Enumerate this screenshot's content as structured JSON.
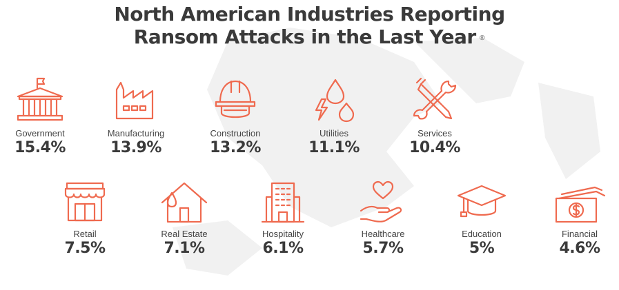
{
  "title_line1": "North American Industries Reporting",
  "title_line2": "Ransom Attacks in the Last Year",
  "title_mark": "®",
  "accent_color": "#ef6a4f",
  "chart_data": {
    "type": "table",
    "categories": [
      "Government",
      "Manufacturing",
      "Construction",
      "Utilities",
      "Services",
      "Retail",
      "Real Estate",
      "Hospitality",
      "Healthcare",
      "Education",
      "Financial"
    ],
    "values": [
      15.4,
      13.9,
      13.2,
      11.1,
      10.4,
      7.5,
      7.1,
      6.1,
      5.7,
      5,
      4.6
    ],
    "unit": "%"
  },
  "items": [
    {
      "label": "Government",
      "value": "15.4%",
      "icon": "government-building-icon"
    },
    {
      "label": "Manufacturing",
      "value": "13.9%",
      "icon": "factory-icon"
    },
    {
      "label": "Construction",
      "value": "13.2%",
      "icon": "hard-hat-icon"
    },
    {
      "label": "Utilities",
      "value": "11.1%",
      "icon": "utilities-icon"
    },
    {
      "label": "Services",
      "value": "10.4%",
      "icon": "wrench-screwdriver-icon"
    },
    {
      "label": "Retail",
      "value": "7.5%",
      "icon": "storefront-icon"
    },
    {
      "label": "Real Estate",
      "value": "7.1%",
      "icon": "house-icon"
    },
    {
      "label": "Hospitality",
      "value": "6.1%",
      "icon": "hotel-icon"
    },
    {
      "label": "Healthcare",
      "value": "5.7%",
      "icon": "heart-hand-icon"
    },
    {
      "label": "Education",
      "value": "5%",
      "icon": "graduation-cap-icon"
    },
    {
      "label": "Financial",
      "value": "4.6%",
      "icon": "money-icon"
    }
  ]
}
